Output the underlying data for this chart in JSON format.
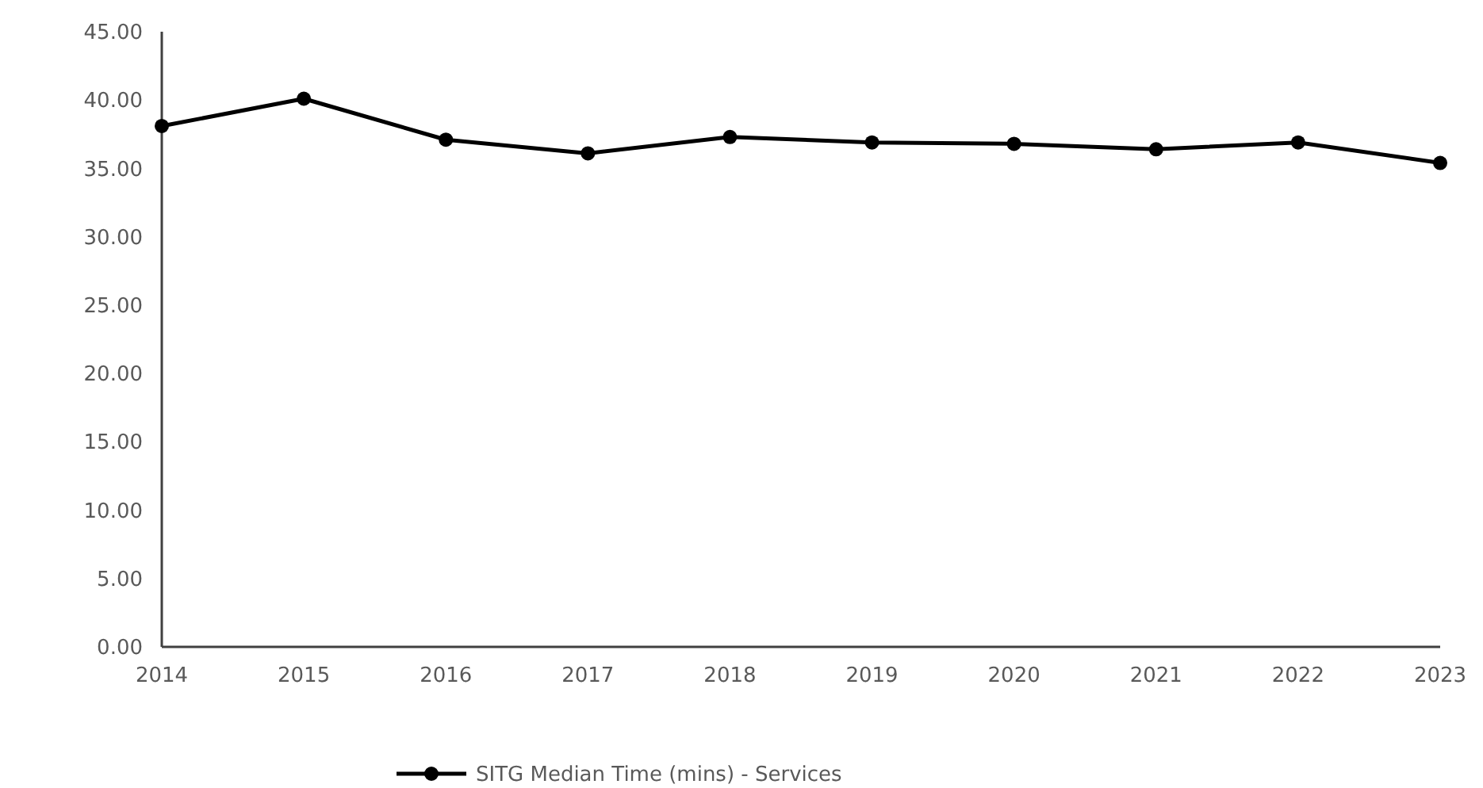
{
  "chart_data": {
    "type": "line",
    "categories": [
      "2014",
      "2015",
      "2016",
      "2017",
      "2018",
      "2019",
      "2020",
      "2021",
      "2022",
      "2023"
    ],
    "series": [
      {
        "name": "SITG Median Time (mins) - Services",
        "color": "#000000",
        "values": [
          38.1,
          40.1,
          37.1,
          36.1,
          37.3,
          36.9,
          36.8,
          36.4,
          36.9,
          35.4
        ]
      }
    ],
    "ylim": [
      0,
      45
    ],
    "yticks": [
      {
        "value": 0,
        "label": "0.00"
      },
      {
        "value": 5,
        "label": "5.00"
      },
      {
        "value": 10,
        "label": "10.00"
      },
      {
        "value": 15,
        "label": "15.00"
      },
      {
        "value": 20,
        "label": "20.00"
      },
      {
        "value": 25,
        "label": "25.00"
      },
      {
        "value": 30,
        "label": "30.00"
      },
      {
        "value": 35,
        "label": "35.00"
      },
      {
        "value": 40,
        "label": "40.00"
      },
      {
        "value": 45,
        "label": "45.00"
      }
    ],
    "grid": false,
    "legend": "bottom",
    "marker": "circle",
    "line_style": "solid"
  }
}
